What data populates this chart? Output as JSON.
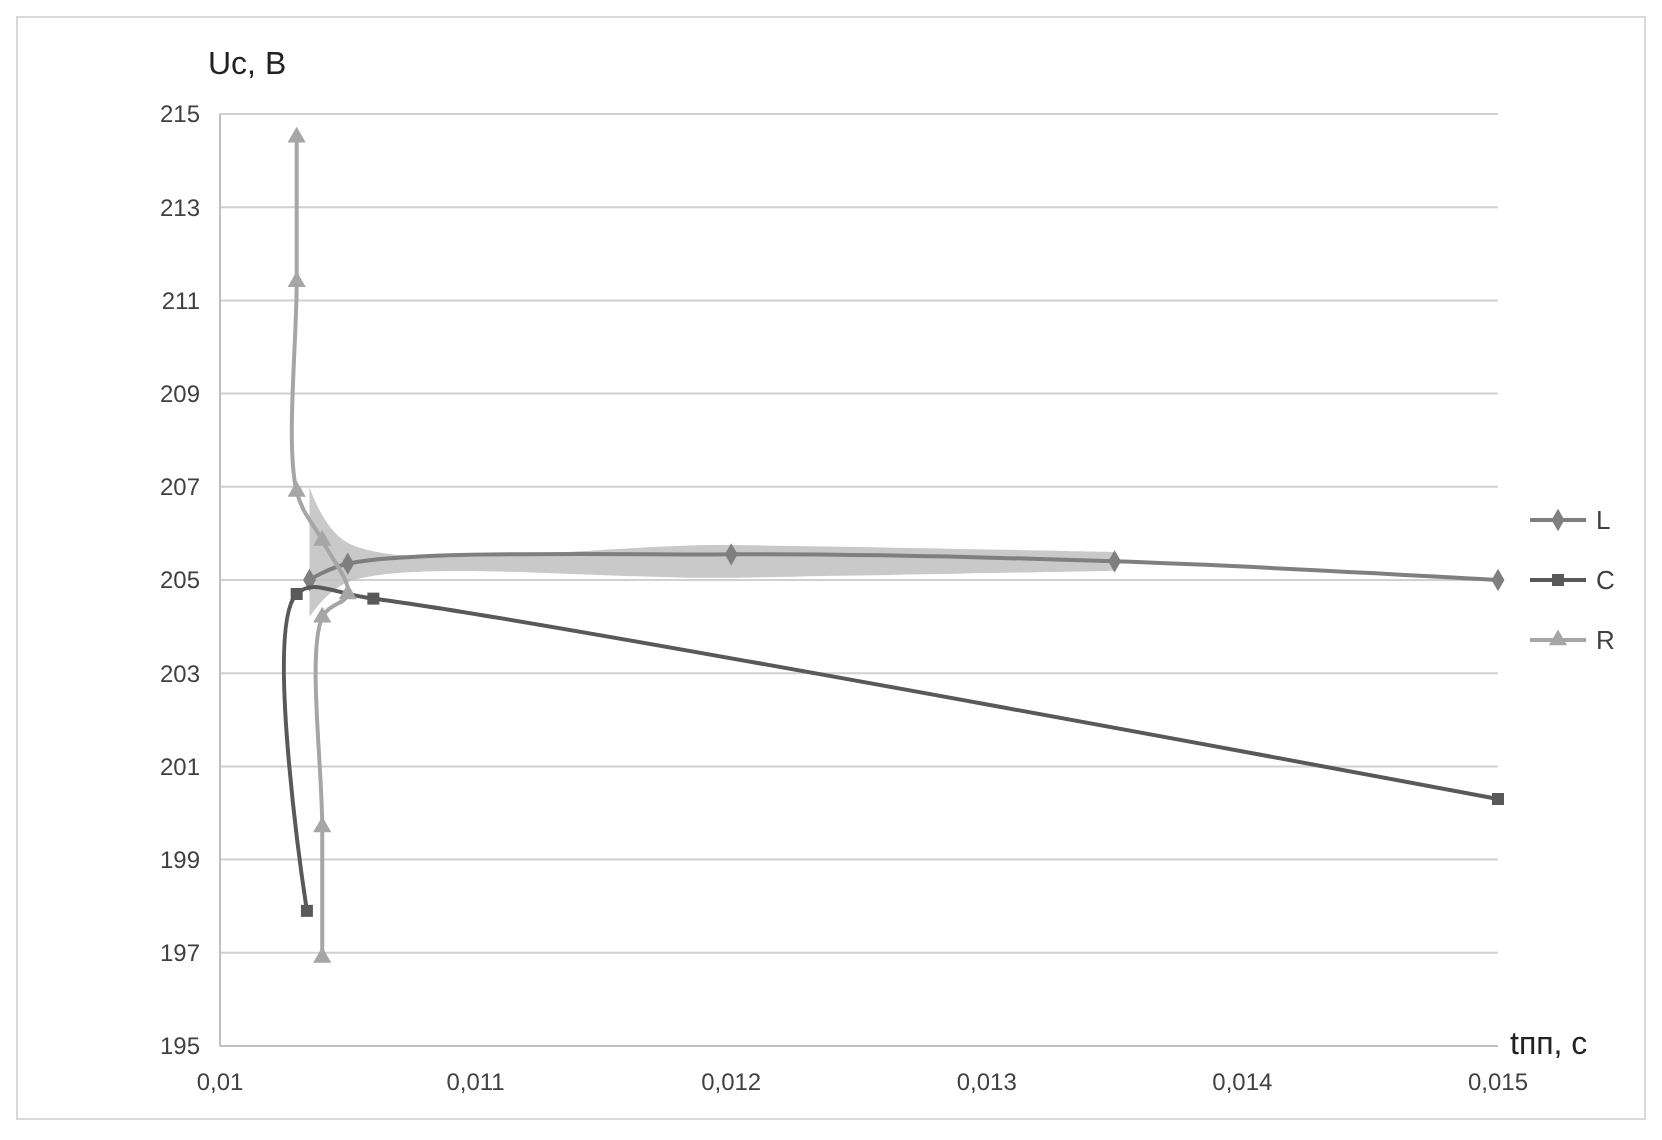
{
  "chart_data": {
    "type": "line",
    "ylabel": "Uс, В",
    "xlabel": "tпп, с",
    "xlim": [
      0.01,
      0.015
    ],
    "xticks": [
      {
        "value": 0.01,
        "label": "0,01"
      },
      {
        "value": 0.011,
        "label": "0,011"
      },
      {
        "value": 0.012,
        "label": "0,012"
      },
      {
        "value": 0.013,
        "label": "0,013"
      },
      {
        "value": 0.014,
        "label": "0,014"
      },
      {
        "value": 0.015,
        "label": "0,015"
      }
    ],
    "ylim": [
      195,
      215
    ],
    "yticks": [
      195,
      197,
      199,
      201,
      203,
      205,
      207,
      209,
      211,
      213,
      215
    ],
    "grid": "y",
    "legend": "right",
    "series": [
      {
        "name": "L",
        "color": "#7f7f7f",
        "marker": "diamond",
        "x": [
          0.01035,
          0.0105,
          0.012,
          0.0135,
          0.015
        ],
        "values": [
          205.0,
          205.35,
          205.55,
          205.4,
          205.0
        ],
        "lower": [
          204.2,
          204.95,
          205.05,
          205.2,
          null
        ],
        "upper": [
          207.0,
          205.8,
          205.75,
          205.6,
          null
        ]
      },
      {
        "name": "C",
        "color": "#595959",
        "marker": "square",
        "x": [
          0.01034,
          0.0103,
          0.0106,
          0.015
        ],
        "values": [
          197.9,
          204.7,
          204.6,
          200.3
        ]
      },
      {
        "name": "R",
        "color": "#a6a6a6",
        "marker": "triangle",
        "x": [
          0.0103,
          0.0103,
          0.0103,
          0.0104,
          0.0105,
          0.0104,
          0.0104,
          0.0104
        ],
        "values": [
          214.5,
          211.4,
          206.9,
          205.85,
          204.7,
          204.2,
          199.7,
          196.9
        ]
      }
    ]
  }
}
